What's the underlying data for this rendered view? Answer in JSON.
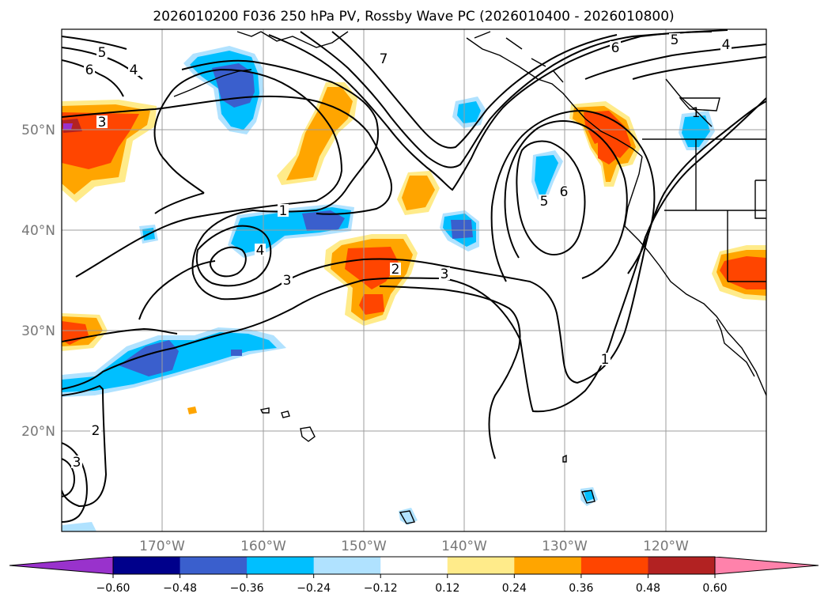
{
  "chart_data": {
    "type": "contour-map",
    "title": "2026010200 F036 250 hPa PV, Rossby Wave PC (2026010400 - 2026010800)",
    "lon_range": [
      -180,
      -110
    ],
    "lat_range": [
      10,
      60
    ],
    "lon_ticks": [
      -170,
      -160,
      -150,
      -140,
      -130,
      -120
    ],
    "lon_labels": [
      "170°W",
      "160°W",
      "150°W",
      "140°W",
      "130°W",
      "120°W"
    ],
    "lat_ticks": [
      20,
      30,
      40,
      50
    ],
    "lat_labels": [
      "20°N",
      "30°N",
      "40°N",
      "50°N"
    ],
    "colorbar": {
      "levels": [
        -0.6,
        -0.48,
        -0.36,
        -0.24,
        -0.12,
        0.12,
        0.24,
        0.36,
        0.48,
        0.6
      ],
      "labels": [
        "−0.60",
        "−0.48",
        "−0.36",
        "−0.24",
        "−0.12",
        "0.12",
        "0.24",
        "0.36",
        "0.48",
        "0.60"
      ],
      "colors": [
        "#9932cc",
        "#00008b",
        "#3a5fcd",
        "#00bfff",
        "#b0e2ff",
        "#ffffff",
        "#ffeb8a",
        "#ffa500",
        "#ff4500",
        "#b22222",
        "#ff82ab"
      ]
    },
    "pv_contour_labels": [
      {
        "text": "5",
        "lon": -174,
        "lat": 57
      },
      {
        "text": "6",
        "lon": -176.9,
        "lat": 56
      },
      {
        "text": "4",
        "lon": -172.9,
        "lat": 56.3
      },
      {
        "text": "3",
        "lon": -176,
        "lat": 51
      },
      {
        "text": "7",
        "lon": -148,
        "lat": 58
      },
      {
        "text": "1",
        "lon": -161,
        "lat": 42
      },
      {
        "text": "4",
        "lon": -160,
        "lat": 38
      },
      {
        "text": "3",
        "lon": -160.6,
        "lat": 36
      },
      {
        "text": "2",
        "lon": -147,
        "lat": 36.5
      },
      {
        "text": "3",
        "lon": -142,
        "lat": 36.3
      },
      {
        "text": "6",
        "lon": -124.9,
        "lat": 58.2
      },
      {
        "text": "5",
        "lon": -119.5,
        "lat": 59
      },
      {
        "text": "4",
        "lon": -113.8,
        "lat": 58.5
      },
      {
        "text": "6",
        "lon": -129.8,
        "lat": 44
      },
      {
        "text": "5",
        "lon": -131.8,
        "lat": 43.5
      },
      {
        "text": "1",
        "lon": -118,
        "lat": 51.5
      },
      {
        "text": "1",
        "lon": -128.7,
        "lat": 27.1
      },
      {
        "text": "2",
        "lon": -174.5,
        "lat": 22
      },
      {
        "text": "3",
        "lon": -179,
        "lat": 17
      }
    ],
    "rossby_wave_pc_anomalies": [
      {
        "sign": "positive",
        "max": 0.48,
        "lon": -177,
        "lat": 49
      },
      {
        "sign": "positive",
        "max": 0.36,
        "lon": -178,
        "lat": 30
      },
      {
        "sign": "positive",
        "max": 0.24,
        "lon": -154,
        "lat": 50
      },
      {
        "sign": "positive",
        "max": 0.24,
        "lon": -146,
        "lat": 44
      },
      {
        "sign": "positive",
        "max": 0.36,
        "lon": -150,
        "lat": 36
      },
      {
        "sign": "positive",
        "max": 0.36,
        "lon": -125,
        "lat": 49
      },
      {
        "sign": "positive",
        "max": 0.36,
        "lon": -112,
        "lat": 35
      },
      {
        "sign": "positive",
        "max": 0.24,
        "lon": -169,
        "lat": 22
      },
      {
        "sign": "negative",
        "min": -0.48,
        "lon": -162,
        "lat": 56
      },
      {
        "sign": "negative",
        "min": -0.36,
        "lon": -140,
        "lat": 52
      },
      {
        "sign": "negative",
        "min": -0.36,
        "lon": -116,
        "lat": 50
      },
      {
        "sign": "negative",
        "min": -0.36,
        "lon": -132,
        "lat": 45
      },
      {
        "sign": "negative",
        "min": -0.48,
        "lon": -156,
        "lat": 40
      },
      {
        "sign": "negative",
        "min": -0.48,
        "lon": -140,
        "lat": 40
      },
      {
        "sign": "negative",
        "min": -0.48,
        "lon": -167,
        "lat": 27
      },
      {
        "sign": "negative",
        "min": -0.24,
        "lon": -175,
        "lat": 39
      },
      {
        "sign": "negative",
        "min": -0.24,
        "lon": -146,
        "lat": 15
      },
      {
        "sign": "negative",
        "min": -0.36,
        "lon": -128,
        "lat": 13
      }
    ]
  }
}
